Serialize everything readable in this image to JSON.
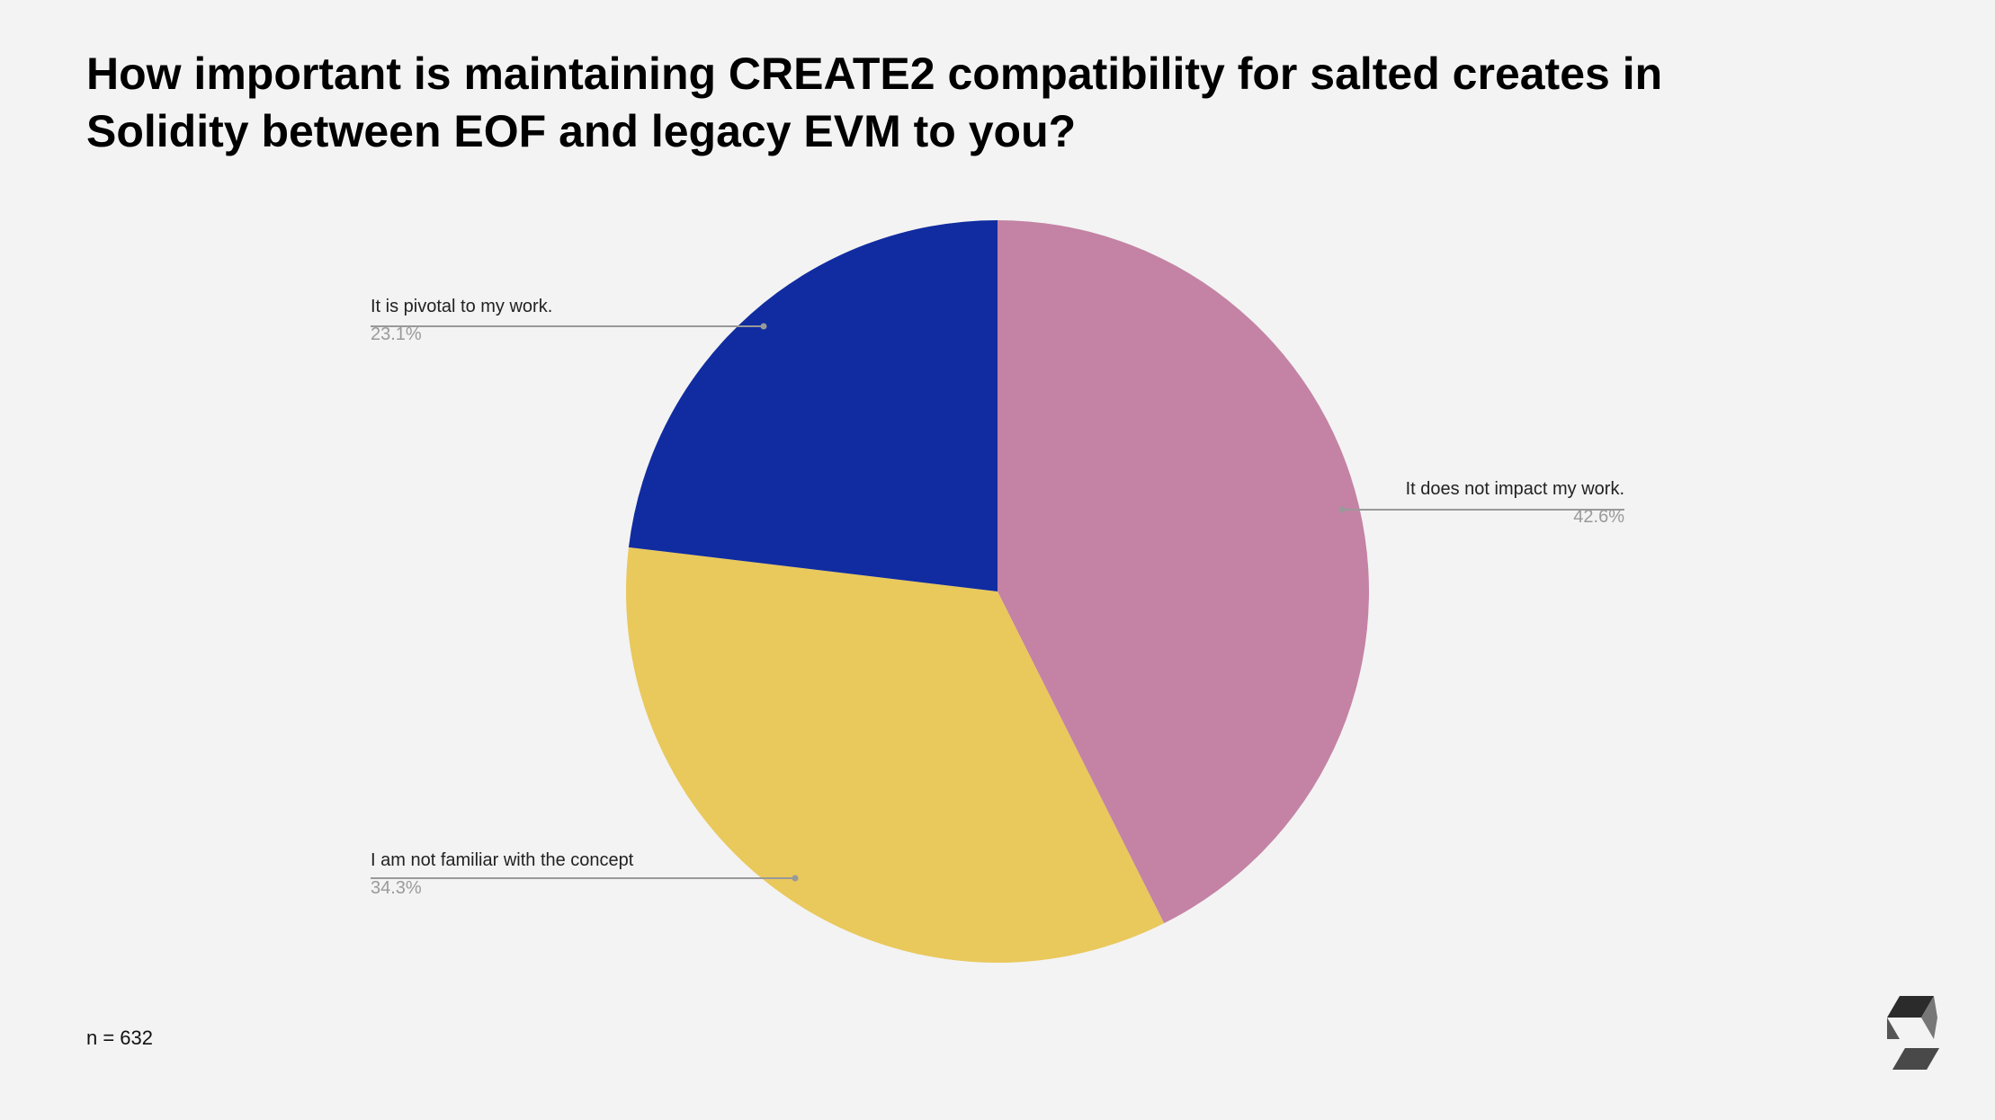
{
  "chart_data": {
    "type": "pie",
    "title": "How important is maintaining CREATE2 compatibility for salted creates in Solidity between EOF and legacy EVM to you?",
    "categories": [
      "It does not impact my work.",
      "I am not familiar with the concept",
      "It is pivotal to my work."
    ],
    "values": [
      42.6,
      34.3,
      23.1
    ],
    "value_labels": [
      "42.6%",
      "34.3%",
      "23.1%"
    ],
    "colors": [
      "#c483a4",
      "#e9c85c",
      "#102ca0"
    ],
    "note": "n = 632"
  }
}
